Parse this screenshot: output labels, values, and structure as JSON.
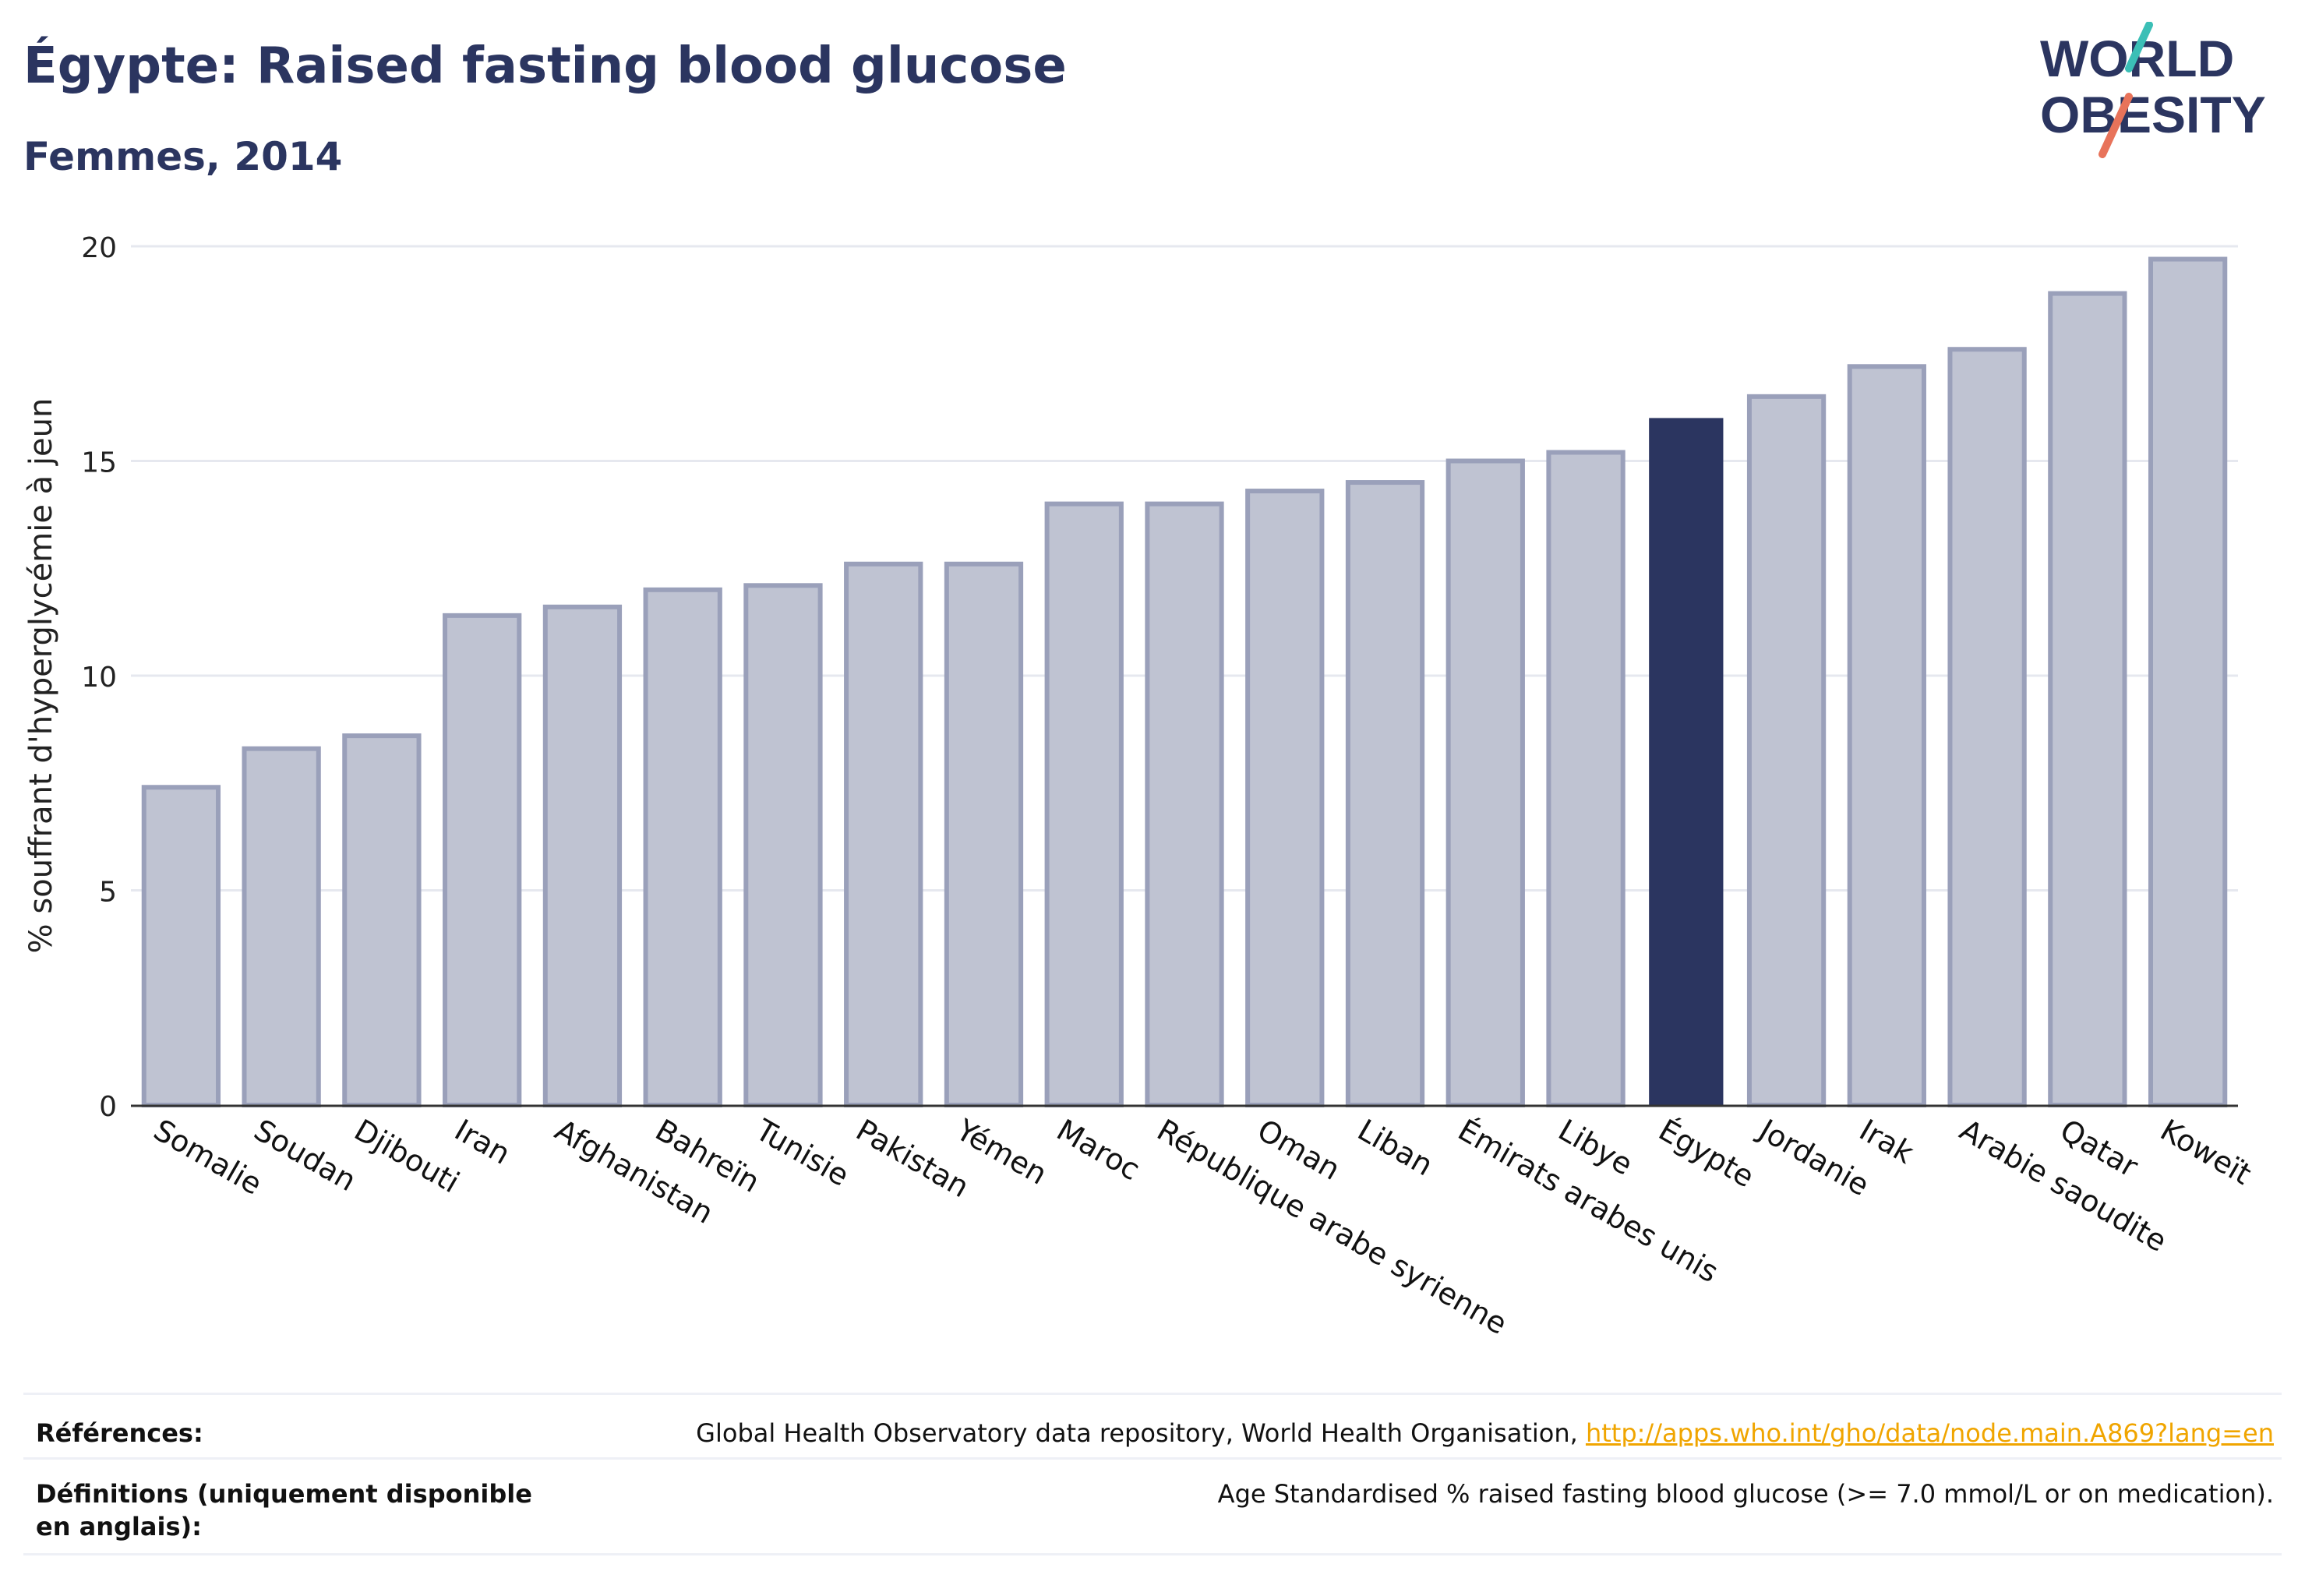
{
  "header": {
    "title": "Égypte: Raised fasting blood glucose",
    "subtitle": "Femmes, 2014"
  },
  "logo": {
    "line1": "WORLD",
    "line2": "OBESITY",
    "colors": {
      "text": "#2b3560",
      "slash_teal": "#3bbfb6",
      "slash_coral": "#e8735a"
    }
  },
  "chart_data": {
    "type": "bar",
    "ylabel": "% souffrant d'hyperglycémie à jeun",
    "xlabel": "",
    "ylim": [
      0,
      20
    ],
    "yticks": [
      0,
      5,
      10,
      15,
      20
    ],
    "grid": true,
    "highlight": "Égypte",
    "colors": {
      "bar": "#bfc3d2",
      "bar_border": "#9aa0ba",
      "highlight": "#2b3560",
      "grid": "#e6e8ef",
      "axis": "#333333"
    },
    "categories": [
      "Somalie",
      "Soudan",
      "Djibouti",
      "Iran",
      "Afghanistan",
      "Bahreïn",
      "Tunisie",
      "Pakistan",
      "Yémen",
      "Maroc",
      "République arabe syrienne",
      "Oman",
      "Liban",
      "Émirats arabes unis",
      "Libye",
      "Égypte",
      "Jordanie",
      "Irak",
      "Arabie saoudite",
      "Qatar",
      "Koweït"
    ],
    "values": [
      7.4,
      8.3,
      8.6,
      11.4,
      11.6,
      12.0,
      12.1,
      12.6,
      12.6,
      14.0,
      14.0,
      14.3,
      14.5,
      15.0,
      15.2,
      16.0,
      16.5,
      17.2,
      17.6,
      18.9,
      19.7
    ]
  },
  "footer": {
    "references_label": "Références:",
    "references_text": "Global Health Observatory data repository, World Health Organisation, ",
    "references_link": "http://apps.who.int/gho/data/node.main.A869?lang=en",
    "definitions_label": "Définitions (uniquement disponible en anglais):",
    "definitions_text": "Age Standardised % raised fasting blood glucose (>= 7.0 mmol/L or on medication)."
  }
}
